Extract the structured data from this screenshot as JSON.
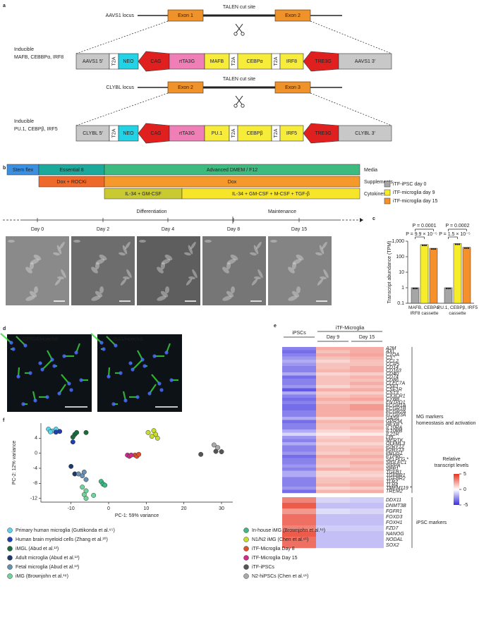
{
  "panel_labels": [
    "a",
    "b",
    "c",
    "d",
    "e",
    "f"
  ],
  "a": {
    "loci": [
      {
        "name": "AAVS1 locus",
        "cut_site": "TALEN cut site",
        "exons": [
          "Exon 1",
          "Exon 2"
        ],
        "exon_color": "#f0922a",
        "construct_title": [
          "Inducible",
          "MAFB, CEBBPα, IRF8"
        ],
        "elements": [
          {
            "label": "AAVS1 5′",
            "color": "#c8c8c8"
          },
          {
            "label": "T2A",
            "color": "#ffffff"
          },
          {
            "label": "NEO",
            "color": "#22d3e6"
          },
          {
            "label": "CAG",
            "color": "#e0201e",
            "arrow": "left"
          },
          {
            "label": "rtTA3G",
            "color": "#ef7fb6"
          },
          {
            "label": "MAFB",
            "color": "#f7ec3a"
          },
          {
            "label": "T2A",
            "color": "#ffffff"
          },
          {
            "label": "CEBPα",
            "color": "#f7ec3a"
          },
          {
            "label": "T2A",
            "color": "#ffffff"
          },
          {
            "label": "IRF8",
            "color": "#f7ec3a"
          },
          {
            "label": "TRE3G",
            "color": "#e0201e",
            "arrow": "left"
          },
          {
            "label": "AAVS1 3′",
            "color": "#c8c8c8"
          }
        ]
      },
      {
        "name": "CLYBL locus",
        "cut_site": "TALEN cut site",
        "exons": [
          "Exon 2",
          "Exon 3"
        ],
        "exon_color": "#f0922a",
        "construct_title": [
          "Inducible",
          "PU.1, CEBPβ, IRF5"
        ],
        "elements": [
          {
            "label": "CLYBL 5′",
            "color": "#c8c8c8"
          },
          {
            "label": "T2A",
            "color": "#ffffff"
          },
          {
            "label": "NEO",
            "color": "#22d3e6"
          },
          {
            "label": "CAG",
            "color": "#e0201e",
            "arrow": "left"
          },
          {
            "label": "rtTA3G",
            "color": "#ef7fb6"
          },
          {
            "label": "PU.1",
            "color": "#f7ec3a"
          },
          {
            "label": "T2A",
            "color": "#ffffff"
          },
          {
            "label": "CEBPβ",
            "color": "#f7ec3a"
          },
          {
            "label": "T2A",
            "color": "#ffffff"
          },
          {
            "label": "IRF5",
            "color": "#f7ec3a"
          },
          {
            "label": "TRE3G",
            "color": "#e0201e",
            "arrow": "left"
          },
          {
            "label": "CLYBL 3′",
            "color": "#c8c8c8"
          }
        ]
      }
    ]
  },
  "b": {
    "rows": [
      {
        "label": "Media",
        "segments": [
          {
            "label": "Stem flex",
            "color": "#3a8fe0"
          },
          {
            "label": "Essential 8",
            "color": "#1aa99a"
          },
          {
            "label": "Advanced DMEM / F12",
            "color": "#3dba7e"
          }
        ]
      },
      {
        "label": "Supplements",
        "segments": [
          {
            "label": "Dox + ROCKi",
            "color": "#ef6a2a"
          },
          {
            "label": "Dox",
            "color": "#f59a2a"
          }
        ]
      },
      {
        "label": "Cytokines",
        "segments": [
          {
            "label": "IL-34 + GM-CSF",
            "color": "#c9c932"
          },
          {
            "label": "IL-34 + GM-CSF + M-CSF + TGF-β",
            "color": "#f7e52a"
          }
        ]
      }
    ],
    "phases": [
      "Differentiation",
      "Maintenance"
    ],
    "days": [
      "Day 0",
      "Day 2",
      "Day 4",
      "Day 8",
      "Day 15"
    ]
  },
  "d": {
    "images": [
      {
        "marker": "GPR34",
        "counterstain": "/Hoechst",
        "marker_color": "#39d839",
        "counterstain_color": "#4a6cff"
      },
      {
        "marker": "IBA1",
        "counterstain": "/Hoechst",
        "marker_color": "#39d839",
        "counterstain_color": "#4a6cff"
      }
    ]
  },
  "chart_data": [
    {
      "type": "bar",
      "ylabel": "Transcript abundance (TPM)",
      "log_scale": true,
      "categories": [
        "MAFB, CEBPα, IRF8 cassette",
        "PU.1, CEBPβ, IRF5 cassette"
      ],
      "series": [
        {
          "name": "iTF-iPSC day 0",
          "color": "#a6a6a6",
          "values": [
            1,
            1
          ]
        },
        {
          "name": "iTF-microglia day 9",
          "color": "#f7ec2a",
          "values": [
            600,
            700
          ]
        },
        {
          "name": "iTF-microglia day 15",
          "color": "#f5902a",
          "values": [
            350,
            400
          ]
        }
      ],
      "ylim": [
        0.1,
        1000
      ],
      "yticks": [
        0.1,
        1,
        10,
        100,
        {
          "value": 1000,
          "label": "1,000"
        }
      ],
      "annotations": [
        "P = 0.0001",
        "P = 9.9 × 10⁻⁵",
        "P = 0.0002",
        "P = 1.5 × 10⁻⁵"
      ]
    },
    {
      "type": "heatmap",
      "column_group": "iTF-Microglia",
      "columns": [
        "iPSCs",
        "Day 9",
        "Day 15"
      ],
      "colorbar_title": [
        "Relative",
        "transcript levels"
      ],
      "colorscale": [
        "#3a2ee0",
        "#ffffff",
        "#e8321e"
      ],
      "zlim": [
        -5,
        5
      ],
      "zticks": [
        5,
        0,
        -5
      ],
      "row_groups": [
        {
          "label": [
            "MG markers",
            "homeostasis and activation"
          ],
          "rows": [
            "A2M",
            "AXL",
            "C1QA",
            "C3",
            "CCL2",
            "CCR5",
            "CD14",
            "CD163",
            "CD40",
            "CD74",
            "CD86",
            "CLEC7A",
            "CSF1",
            "CSF1R",
            "CST3",
            "CX3CR1",
            "CYBB",
            "ENTPD1",
            "FCGR1A",
            "FCGR1B",
            "FCGR2A",
            "FCGR3A",
            "GAS6",
            "GPR34",
            "HEXB *",
            "IL10RA",
            "IL10RB",
            "IL21R",
            "LPL",
            "MERTK",
            "OLFML3",
            "P2RY12",
            "P2RY13",
            "PROS1",
            "PTPRC",
            "SELPLG *",
            "SIGLEC1",
            "SIRPA",
            "SPP1",
            "TGFB1",
            "TGFBR1",
            "TGFBR2",
            "TLR2",
            "TLR4",
            "TMEM119 *",
            "TREM2"
          ],
          "values": [
            [
              -3,
              2,
              2
            ],
            [
              -3.5,
              1.5,
              2
            ],
            [
              -3,
              2,
              2.2
            ],
            [
              -2.5,
              1.5,
              1.8
            ],
            [
              -2,
              1,
              1.5
            ],
            [
              -2.5,
              1.5,
              1.5
            ],
            [
              -3,
              1.5,
              2
            ],
            [
              -3,
              1.8,
              2
            ],
            [
              -2,
              1,
              1.2
            ],
            [
              -3.5,
              1.5,
              1.8
            ],
            [
              -3,
              1.5,
              1.5
            ],
            [
              -3,
              1.5,
              2
            ],
            [
              -2.5,
              1,
              1.5
            ],
            [
              -4,
              2,
              2
            ],
            [
              -2,
              1.2,
              1.2
            ],
            [
              -3,
              1.5,
              1.8
            ],
            [
              -3.5,
              2,
              2.2
            ],
            [
              -3,
              1.5,
              1.5
            ],
            [
              -3.5,
              2,
              2.5
            ],
            [
              -3.5,
              2,
              2.5
            ],
            [
              -3,
              2,
              2
            ],
            [
              -3,
              2,
              2
            ],
            [
              -2,
              1,
              1
            ],
            [
              -3.5,
              1.8,
              2
            ],
            [
              -3,
              1.5,
              1.5
            ],
            [
              -3,
              1.5,
              1.8
            ],
            [
              -2,
              1,
              1.2
            ],
            [
              -1,
              0.5,
              0.5
            ],
            [
              -2.5,
              1.2,
              1.5
            ],
            [
              -3,
              1.5,
              1.5
            ],
            [
              -2,
              1,
              1
            ],
            [
              -3,
              1.5,
              1.5
            ],
            [
              -3,
              1.5,
              1.8
            ],
            [
              -2.5,
              1.2,
              1.5
            ],
            [
              -3.5,
              2,
              2
            ],
            [
              -3,
              1.5,
              1.5
            ],
            [
              -3,
              1.5,
              2
            ],
            [
              -2.5,
              1.2,
              1.5
            ],
            [
              -3,
              2,
              1.8
            ],
            [
              -2,
              1,
              1.2
            ],
            [
              -2,
              1,
              1
            ],
            [
              -3,
              1.5,
              1.5
            ],
            [
              -3,
              1.5,
              1.8
            ],
            [
              -3,
              1.8,
              2
            ],
            [
              -2.5,
              1,
              1.2
            ],
            [
              -3.5,
              1.8,
              2
            ]
          ]
        },
        {
          "label": [
            "iPSC markers"
          ],
          "rows": [
            "DDX11",
            "DNMT3B",
            "FGFR1",
            "FOXD3",
            "FOXH1",
            "FZD7",
            "NANOG",
            "NODAL",
            "SOX2"
          ],
          "values": [
            [
              3,
              -1,
              -1.2
            ],
            [
              4,
              -1.5,
              -1.5
            ],
            [
              2.5,
              -0.8,
              -1
            ],
            [
              3.5,
              -1.5,
              -1.5
            ],
            [
              3.5,
              -1.5,
              -1.5
            ],
            [
              3,
              -1.2,
              -1.2
            ],
            [
              4,
              -1.5,
              -1.5
            ],
            [
              3.5,
              -1.5,
              -1.5
            ],
            [
              3.5,
              -1.5,
              -1.5
            ]
          ]
        }
      ]
    },
    {
      "type": "scatter",
      "xlabel": "PC-1: 59% variance",
      "ylabel": "PC-2: 12% variance",
      "xlim": [
        -18,
        33
      ],
      "xticks": [
        -10,
        0,
        10,
        20,
        30
      ],
      "ylim": [
        -13,
        8
      ],
      "yticks": [
        -12,
        -8,
        -4,
        0,
        4
      ],
      "series": [
        {
          "name": "Primary human microglia (Guttikonda et al.⁶⁵)",
          "color": "#5ad3e8",
          "x": [
            -16,
            -15,
            -14,
            -15.5
          ],
          "values": [
            6.4,
            5.9,
            6.4,
            5.7
          ]
        },
        {
          "name": "Human brain myeloid cells (Zhang et al.²⁰)",
          "color": "#1f3fb0",
          "x": [
            -13,
            -9.5,
            -14
          ],
          "values": [
            5.8,
            3,
            5.6
          ]
        },
        {
          "name": "iMGL (Abud et al.¹³)",
          "color": "#1a6b3a",
          "x": [
            -9,
            -8.5,
            -9.5,
            -6
          ],
          "values": [
            5,
            5.5,
            4.3,
            5.5
          ]
        },
        {
          "name": "Adult microglia (Abud et al.¹³)",
          "color": "#1c3a6b",
          "x": [
            -10,
            -9
          ],
          "values": [
            -3.5,
            -5.5
          ]
        },
        {
          "name": "Fetal microglia (Abud et al.¹³)",
          "color": "#6a8fb5",
          "x": [
            -8,
            -7,
            -6.5,
            -6
          ],
          "values": [
            -5.5,
            -6,
            -5,
            -7
          ]
        },
        {
          "name": "iMG (Brownjohn et al.¹⁸)",
          "color": "#6fd39a",
          "x": [
            -7,
            -6,
            -6.5,
            -4,
            -6
          ],
          "values": [
            -9,
            -10,
            -11,
            -11.2,
            -12
          ]
        },
        {
          "name": "In-house iMG (Brownjohn et al.¹⁸)",
          "color": "#3fb883",
          "x": [
            -2,
            -1.5,
            -1
          ],
          "values": [
            -7.5,
            -8.2,
            -8.5
          ]
        },
        {
          "name": "N1/N2 iMG (Chen et al.⁶¹)",
          "color": "#c8dc2a",
          "x": [
            12,
            12.5,
            11.5,
            13,
            10.5
          ],
          "values": [
            6,
            5,
            4.5,
            4,
            5.5
          ]
        },
        {
          "name": "iTF-Microglia Day 8",
          "color": "#e2502a",
          "x": [
            7,
            7.5,
            8
          ],
          "values": [
            -0.5,
            -0.8,
            -0.3
          ]
        },
        {
          "name": "iTF-Microglia Day 15",
          "color": "#d42a8c",
          "x": [
            5,
            5.5,
            6
          ],
          "values": [
            -0.5,
            -0.8,
            -0.5
          ]
        },
        {
          "name": "iTF-iPSCs",
          "color": "#555555",
          "x": [
            24.5,
            28.5,
            30
          ],
          "values": [
            -0.3,
            0.5,
            0.4
          ]
        },
        {
          "name": "N2-hiPSCs (Chen et al.⁶¹)",
          "color": "#aaaaaa",
          "x": [
            28,
            29
          ],
          "values": [
            2.2,
            1.5
          ]
        }
      ]
    }
  ]
}
